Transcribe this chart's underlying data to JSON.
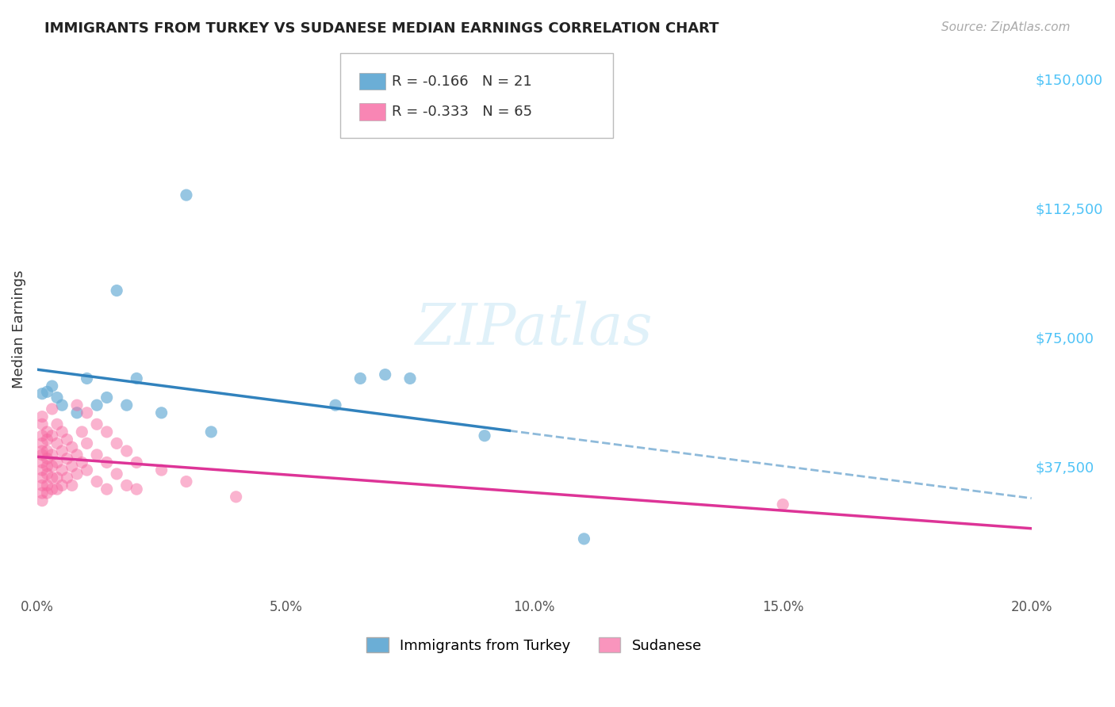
{
  "title": "IMMIGRANTS FROM TURKEY VS SUDANESE MEDIAN EARNINGS CORRELATION CHART",
  "source": "Source: ZipAtlas.com",
  "ylabel": "Median Earnings",
  "y_ticks": [
    0,
    37500,
    75000,
    112500,
    150000
  ],
  "y_tick_labels": [
    "",
    "$37,500",
    "$75,000",
    "$112,500",
    "$150,000"
  ],
  "x_min": 0.0,
  "x_max": 0.2,
  "y_min": 15000,
  "y_max": 155000,
  "legend_blue_r": "-0.166",
  "legend_blue_n": "21",
  "legend_pink_r": "-0.333",
  "legend_pink_n": "65",
  "blue_color": "#6baed6",
  "pink_color": "#f768a1",
  "blue_line_color": "#3182bd",
  "pink_line_color": "#dd3497",
  "blue_dashed_split": 0.095,
  "blue_scatter": [
    [
      0.001,
      68000
    ],
    [
      0.002,
      68500
    ],
    [
      0.003,
      70000
    ],
    [
      0.004,
      67000
    ],
    [
      0.005,
      65000
    ],
    [
      0.008,
      63000
    ],
    [
      0.01,
      72000
    ],
    [
      0.012,
      65000
    ],
    [
      0.014,
      67000
    ],
    [
      0.016,
      95000
    ],
    [
      0.018,
      65000
    ],
    [
      0.02,
      72000
    ],
    [
      0.025,
      63000
    ],
    [
      0.03,
      120000
    ],
    [
      0.035,
      58000
    ],
    [
      0.06,
      65000
    ],
    [
      0.065,
      72000
    ],
    [
      0.07,
      73000
    ],
    [
      0.075,
      72000
    ],
    [
      0.09,
      57000
    ],
    [
      0.11,
      30000
    ]
  ],
  "pink_scatter": [
    [
      0.001,
      52000
    ],
    [
      0.001,
      55000
    ],
    [
      0.001,
      60000
    ],
    [
      0.001,
      57000
    ],
    [
      0.001,
      53000
    ],
    [
      0.001,
      50000
    ],
    [
      0.001,
      48000
    ],
    [
      0.001,
      46000
    ],
    [
      0.001,
      44000
    ],
    [
      0.001,
      42000
    ],
    [
      0.001,
      40000
    ],
    [
      0.001,
      62000
    ],
    [
      0.002,
      58000
    ],
    [
      0.002,
      56000
    ],
    [
      0.002,
      53000
    ],
    [
      0.002,
      51000
    ],
    [
      0.002,
      49000
    ],
    [
      0.002,
      47000
    ],
    [
      0.002,
      44000
    ],
    [
      0.002,
      42000
    ],
    [
      0.003,
      64000
    ],
    [
      0.003,
      57000
    ],
    [
      0.003,
      52000
    ],
    [
      0.003,
      49000
    ],
    [
      0.003,
      46000
    ],
    [
      0.003,
      43000
    ],
    [
      0.004,
      60000
    ],
    [
      0.004,
      55000
    ],
    [
      0.004,
      50000
    ],
    [
      0.004,
      46000
    ],
    [
      0.004,
      43000
    ],
    [
      0.005,
      58000
    ],
    [
      0.005,
      53000
    ],
    [
      0.005,
      48000
    ],
    [
      0.005,
      44000
    ],
    [
      0.006,
      56000
    ],
    [
      0.006,
      51000
    ],
    [
      0.006,
      46000
    ],
    [
      0.007,
      54000
    ],
    [
      0.007,
      49000
    ],
    [
      0.007,
      44000
    ],
    [
      0.008,
      65000
    ],
    [
      0.008,
      52000
    ],
    [
      0.008,
      47000
    ],
    [
      0.009,
      58000
    ],
    [
      0.009,
      50000
    ],
    [
      0.01,
      63000
    ],
    [
      0.01,
      55000
    ],
    [
      0.01,
      48000
    ],
    [
      0.012,
      60000
    ],
    [
      0.012,
      52000
    ],
    [
      0.012,
      45000
    ],
    [
      0.014,
      58000
    ],
    [
      0.014,
      50000
    ],
    [
      0.014,
      43000
    ],
    [
      0.016,
      55000
    ],
    [
      0.016,
      47000
    ],
    [
      0.018,
      53000
    ],
    [
      0.018,
      44000
    ],
    [
      0.02,
      50000
    ],
    [
      0.02,
      43000
    ],
    [
      0.025,
      48000
    ],
    [
      0.03,
      45000
    ],
    [
      0.04,
      41000
    ],
    [
      0.15,
      39000
    ]
  ],
  "background_color": "#ffffff",
  "grid_color": "#dddddd"
}
